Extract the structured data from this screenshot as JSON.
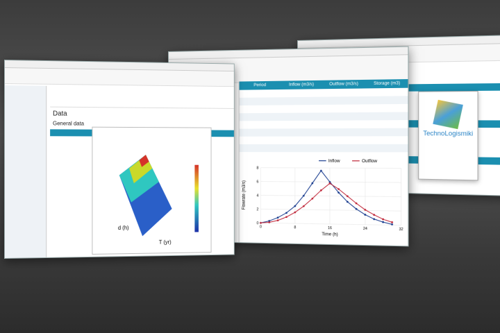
{
  "left_window": {
    "heading": "Data",
    "section": "General data",
    "plot_x_label": "T (yr)",
    "plot_y_label": "d (h)"
  },
  "middle_window": {
    "table_headers": [
      "Period",
      "Inflow (m3/s)",
      "Outflow (m3/s)",
      "Storage (m3)"
    ],
    "chart": {
      "type": "line",
      "x_label": "Time (h)",
      "y_label": "Flowrate (m3/s)",
      "x": [
        0,
        2,
        4,
        6,
        8,
        10,
        12,
        14,
        16,
        18,
        20,
        22,
        24,
        26,
        28,
        30
      ],
      "series": [
        {
          "name": "Inflow",
          "color": "#1a3d8f",
          "values": [
            0,
            0.3,
            0.8,
            1.5,
            2.5,
            4,
            5.8,
            7.6,
            6,
            4.5,
            3.2,
            2.2,
            1.4,
            0.8,
            0.4,
            0.1
          ]
        },
        {
          "name": "Outflow",
          "color": "#c0283a",
          "values": [
            0,
            0.1,
            0.4,
            0.9,
            1.6,
            2.5,
            3.6,
            4.8,
            5.8,
            5,
            4,
            3,
            2.1,
            1.4,
            0.8,
            0.4
          ]
        }
      ],
      "xlim": [
        0,
        32
      ],
      "xticks": [
        0,
        8,
        16,
        24,
        32
      ],
      "ylim": [
        0,
        8
      ],
      "yticks": [
        0,
        2,
        4,
        6,
        8
      ],
      "grid": true
    }
  },
  "right_window": {
    "splash_title": "TechnoLogismiki"
  }
}
